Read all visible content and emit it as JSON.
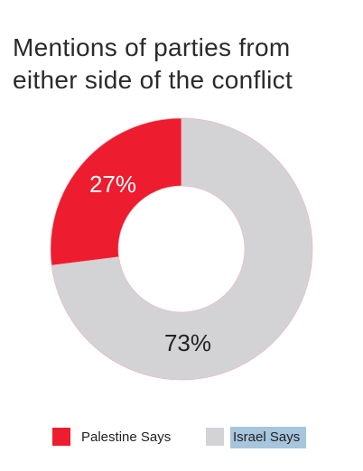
{
  "chart_data": {
    "type": "donut",
    "title": [
      "Mentions of parties from",
      "either side of the conflict"
    ],
    "categories": [
      "Palestine Says",
      "Israel Says"
    ],
    "values": [
      27,
      73
    ],
    "value_labels": [
      "27%",
      "73%"
    ],
    "colors": [
      "#ed1c2e",
      "#d3d3d5"
    ]
  }
}
